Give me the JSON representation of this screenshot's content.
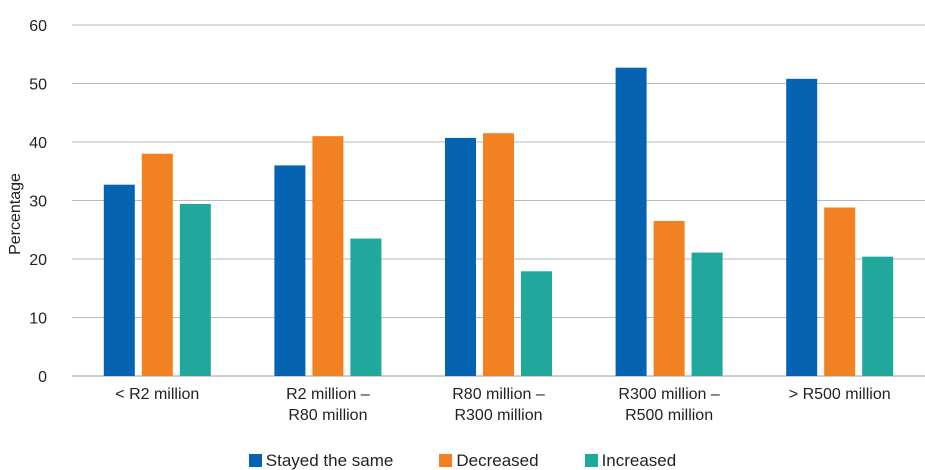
{
  "chart_data": {
    "type": "bar",
    "title": "",
    "xlabel": "",
    "ylabel": "Percentage",
    "ylim": [
      0,
      60
    ],
    "yticks": [
      0,
      10,
      20,
      30,
      40,
      50,
      60
    ],
    "grid": true,
    "legend_position": "bottom",
    "categories": [
      [
        "< R2 million"
      ],
      [
        "R2 million –",
        "R80 million"
      ],
      [
        "R80 million –",
        "R300 million"
      ],
      [
        "R300 million –",
        "R500 million"
      ],
      [
        "> R500 million"
      ]
    ],
    "series": [
      {
        "name": "Stayed the same",
        "color": "#0563b1",
        "values": [
          32.7,
          36.0,
          40.7,
          52.7,
          50.8
        ]
      },
      {
        "name": "Decreased",
        "color": "#f28221",
        "values": [
          38.0,
          41.0,
          41.5,
          26.5,
          28.8
        ]
      },
      {
        "name": "Increased",
        "color": "#21a89c",
        "values": [
          29.4,
          23.5,
          17.9,
          21.1,
          20.4
        ]
      }
    ]
  }
}
